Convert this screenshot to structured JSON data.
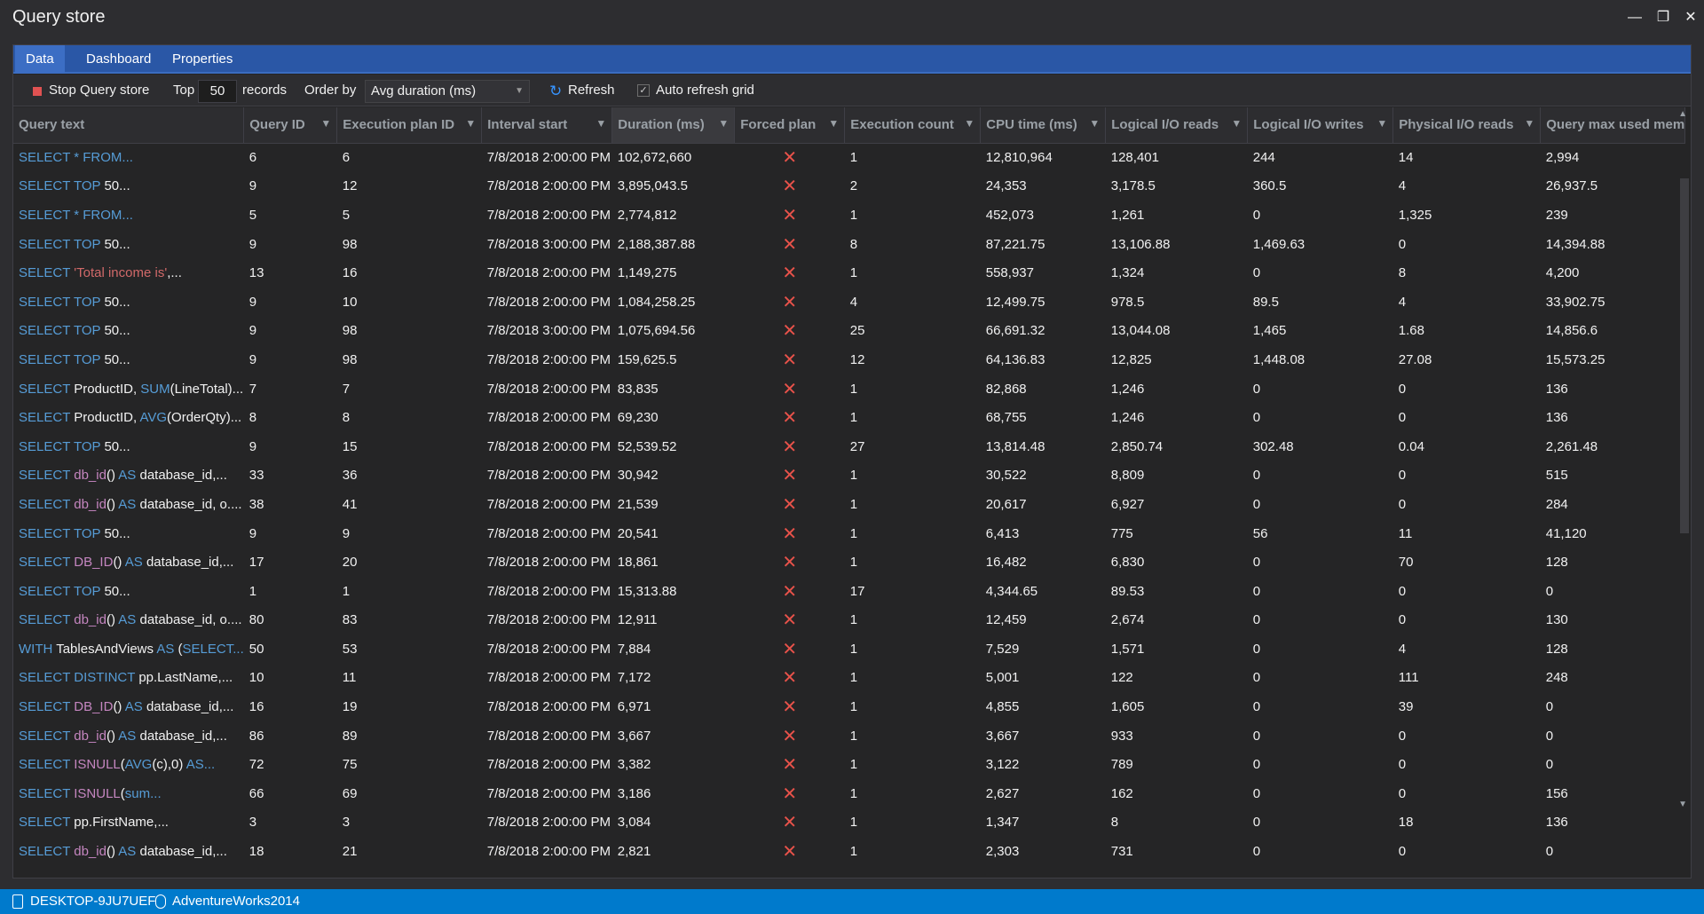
{
  "window": {
    "title": "Query store"
  },
  "tabs": [
    "Data",
    "Dashboard",
    "Properties"
  ],
  "toolbar": {
    "stop_label": "Stop Query store",
    "top_label": "Top",
    "top_value": "50",
    "records_label": "records",
    "order_label": "Order by",
    "order_value": "Avg duration (ms)",
    "refresh_label": "Refresh",
    "auto_refresh_label": "Auto refresh grid",
    "auto_refresh_checked": true
  },
  "columns": [
    "Query text",
    "Query ID",
    "Execution plan ID",
    "Interval start",
    "Duration (ms)",
    "Forced plan",
    "Execution count",
    "CPU time (ms)",
    "Logical I/O reads",
    "Logical I/O writes",
    "Physical I/O reads",
    "Query max used mem"
  ],
  "sorted_column": "Duration (ms)",
  "rows": [
    {
      "qt": [
        [
          "kw",
          "SELECT * FROM..."
        ]
      ],
      "id": "6",
      "plan": "6",
      "start": "7/8/2018 2:00:00 PM",
      "dur": "102,672,660",
      "cnt": "1",
      "cpu": "12,810,964",
      "lr": "128,401",
      "lw": "244",
      "pr": "14",
      "mem": "2,994"
    },
    {
      "qt": [
        [
          "kw",
          "SELECT TOP "
        ],
        [
          "t",
          "50..."
        ]
      ],
      "id": "9",
      "plan": "12",
      "start": "7/8/2018 2:00:00 PM",
      "dur": "3,895,043.5",
      "cnt": "2",
      "cpu": "24,353",
      "lr": "3,178.5",
      "lw": "360.5",
      "pr": "4",
      "mem": "26,937.5"
    },
    {
      "qt": [
        [
          "kw",
          "SELECT * FROM..."
        ]
      ],
      "id": "5",
      "plan": "5",
      "start": "7/8/2018 2:00:00 PM",
      "dur": "2,774,812",
      "cnt": "1",
      "cpu": "452,073",
      "lr": "1,261",
      "lw": "0",
      "pr": "1,325",
      "mem": "239"
    },
    {
      "qt": [
        [
          "kw",
          "SELECT TOP "
        ],
        [
          "t",
          "50..."
        ]
      ],
      "id": "9",
      "plan": "98",
      "start": "7/8/2018 3:00:00 PM",
      "dur": "2,188,387.88",
      "cnt": "8",
      "cpu": "87,221.75",
      "lr": "13,106.88",
      "lw": "1,469.63",
      "pr": "0",
      "mem": "14,394.88"
    },
    {
      "qt": [
        [
          "kw",
          "SELECT "
        ],
        [
          "str",
          "'Total income is'"
        ],
        [
          "t",
          ",..."
        ]
      ],
      "id": "13",
      "plan": "16",
      "start": "7/8/2018 2:00:00 PM",
      "dur": "1,149,275",
      "cnt": "1",
      "cpu": "558,937",
      "lr": "1,324",
      "lw": "0",
      "pr": "8",
      "mem": "4,200"
    },
    {
      "qt": [
        [
          "kw",
          "SELECT TOP "
        ],
        [
          "t",
          "50..."
        ]
      ],
      "id": "9",
      "plan": "10",
      "start": "7/8/2018 2:00:00 PM",
      "dur": "1,084,258.25",
      "cnt": "4",
      "cpu": "12,499.75",
      "lr": "978.5",
      "lw": "89.5",
      "pr": "4",
      "mem": "33,902.75"
    },
    {
      "qt": [
        [
          "kw",
          "SELECT TOP "
        ],
        [
          "t",
          "50..."
        ]
      ],
      "id": "9",
      "plan": "98",
      "start": "7/8/2018 3:00:00 PM",
      "dur": "1,075,694.56",
      "cnt": "25",
      "cpu": "66,691.32",
      "lr": "13,044.08",
      "lw": "1,465",
      "pr": "1.68",
      "mem": "14,856.6"
    },
    {
      "qt": [
        [
          "kw",
          "SELECT TOP "
        ],
        [
          "t",
          "50..."
        ]
      ],
      "id": "9",
      "plan": "98",
      "start": "7/8/2018 2:00:00 PM",
      "dur": "159,625.5",
      "cnt": "12",
      "cpu": "64,136.83",
      "lr": "12,825",
      "lw": "1,448.08",
      "pr": "27.08",
      "mem": "15,573.25"
    },
    {
      "qt": [
        [
          "kw",
          "SELECT "
        ],
        [
          "t",
          "ProductID, "
        ],
        [
          "kw",
          "SUM"
        ],
        [
          "t",
          "(LineTotal)..."
        ]
      ],
      "id": "7",
      "plan": "7",
      "start": "7/8/2018 2:00:00 PM",
      "dur": "83,835",
      "cnt": "1",
      "cpu": "82,868",
      "lr": "1,246",
      "lw": "0",
      "pr": "0",
      "mem": "136"
    },
    {
      "qt": [
        [
          "kw",
          "SELECT "
        ],
        [
          "t",
          "ProductID, "
        ],
        [
          "kw",
          "AVG"
        ],
        [
          "t",
          "(OrderQty)..."
        ]
      ],
      "id": "8",
      "plan": "8",
      "start": "7/8/2018 2:00:00 PM",
      "dur": "69,230",
      "cnt": "1",
      "cpu": "68,755",
      "lr": "1,246",
      "lw": "0",
      "pr": "0",
      "mem": "136"
    },
    {
      "qt": [
        [
          "kw",
          "SELECT TOP "
        ],
        [
          "t",
          "50..."
        ]
      ],
      "id": "9",
      "plan": "15",
      "start": "7/8/2018 2:00:00 PM",
      "dur": "52,539.52",
      "cnt": "27",
      "cpu": "13,814.48",
      "lr": "2,850.74",
      "lw": "302.48",
      "pr": "0.04",
      "mem": "2,261.48"
    },
    {
      "qt": [
        [
          "kw",
          "SELECT "
        ],
        [
          "fn",
          "db_id"
        ],
        [
          "t",
          "() "
        ],
        [
          "kw",
          "AS "
        ],
        [
          "t",
          "database_id,..."
        ]
      ],
      "id": "33",
      "plan": "36",
      "start": "7/8/2018 2:00:00 PM",
      "dur": "30,942",
      "cnt": "1",
      "cpu": "30,522",
      "lr": "8,809",
      "lw": "0",
      "pr": "0",
      "mem": "515"
    },
    {
      "qt": [
        [
          "kw",
          "SELECT "
        ],
        [
          "fn",
          "db_id"
        ],
        [
          "t",
          "() "
        ],
        [
          "kw",
          "AS "
        ],
        [
          "t",
          "database_id, o...."
        ]
      ],
      "id": "38",
      "plan": "41",
      "start": "7/8/2018 2:00:00 PM",
      "dur": "21,539",
      "cnt": "1",
      "cpu": "20,617",
      "lr": "6,927",
      "lw": "0",
      "pr": "0",
      "mem": "284"
    },
    {
      "qt": [
        [
          "kw",
          "SELECT TOP "
        ],
        [
          "t",
          "50..."
        ]
      ],
      "id": "9",
      "plan": "9",
      "start": "7/8/2018 2:00:00 PM",
      "dur": "20,541",
      "cnt": "1",
      "cpu": "6,413",
      "lr": "775",
      "lw": "56",
      "pr": "11",
      "mem": "41,120"
    },
    {
      "qt": [
        [
          "kw",
          "SELECT "
        ],
        [
          "fn",
          "DB_ID"
        ],
        [
          "t",
          "() "
        ],
        [
          "kw",
          "AS "
        ],
        [
          "t",
          "database_id,..."
        ]
      ],
      "id": "17",
      "plan": "20",
      "start": "7/8/2018 2:00:00 PM",
      "dur": "18,861",
      "cnt": "1",
      "cpu": "16,482",
      "lr": "6,830",
      "lw": "0",
      "pr": "70",
      "mem": "128"
    },
    {
      "qt": [
        [
          "kw",
          "SELECT TOP "
        ],
        [
          "t",
          "50..."
        ]
      ],
      "id": "1",
      "plan": "1",
      "start": "7/8/2018 2:00:00 PM",
      "dur": "15,313.88",
      "cnt": "17",
      "cpu": "4,344.65",
      "lr": "89.53",
      "lw": "0",
      "pr": "0",
      "mem": "0"
    },
    {
      "qt": [
        [
          "kw",
          "SELECT "
        ],
        [
          "fn",
          "db_id"
        ],
        [
          "t",
          "() "
        ],
        [
          "kw",
          "AS "
        ],
        [
          "t",
          "database_id, o...."
        ]
      ],
      "id": "80",
      "plan": "83",
      "start": "7/8/2018 2:00:00 PM",
      "dur": "12,911",
      "cnt": "1",
      "cpu": "12,459",
      "lr": "2,674",
      "lw": "0",
      "pr": "0",
      "mem": "130"
    },
    {
      "qt": [
        [
          "kw",
          "WITH "
        ],
        [
          "t",
          "TablesAndViews "
        ],
        [
          "kw",
          "AS "
        ],
        [
          "t",
          "("
        ],
        [
          "kw",
          "SELECT..."
        ]
      ],
      "id": "50",
      "plan": "53",
      "start": "7/8/2018 2:00:00 PM",
      "dur": "7,884",
      "cnt": "1",
      "cpu": "7,529",
      "lr": "1,571",
      "lw": "0",
      "pr": "4",
      "mem": "128"
    },
    {
      "qt": [
        [
          "kw",
          "SELECT DISTINCT "
        ],
        [
          "t",
          "pp.LastName,..."
        ]
      ],
      "id": "10",
      "plan": "11",
      "start": "7/8/2018 2:00:00 PM",
      "dur": "7,172",
      "cnt": "1",
      "cpu": "5,001",
      "lr": "122",
      "lw": "0",
      "pr": "111",
      "mem": "248"
    },
    {
      "qt": [
        [
          "kw",
          "SELECT "
        ],
        [
          "fn",
          "DB_ID"
        ],
        [
          "t",
          "() "
        ],
        [
          "kw",
          "AS "
        ],
        [
          "t",
          "database_id,..."
        ]
      ],
      "id": "16",
      "plan": "19",
      "start": "7/8/2018 2:00:00 PM",
      "dur": "6,971",
      "cnt": "1",
      "cpu": "4,855",
      "lr": "1,605",
      "lw": "0",
      "pr": "39",
      "mem": "0"
    },
    {
      "qt": [
        [
          "kw",
          "SELECT "
        ],
        [
          "fn",
          "db_id"
        ],
        [
          "t",
          "() "
        ],
        [
          "kw",
          "AS "
        ],
        [
          "t",
          "database_id,..."
        ]
      ],
      "id": "86",
      "plan": "89",
      "start": "7/8/2018 2:00:00 PM",
      "dur": "3,667",
      "cnt": "1",
      "cpu": "3,667",
      "lr": "933",
      "lw": "0",
      "pr": "0",
      "mem": "0"
    },
    {
      "qt": [
        [
          "kw",
          "SELECT "
        ],
        [
          "fn",
          "ISNULL"
        ],
        [
          "t",
          "("
        ],
        [
          "kw",
          "AVG"
        ],
        [
          "t",
          "(c),0) "
        ],
        [
          "kw",
          "AS..."
        ]
      ],
      "id": "72",
      "plan": "75",
      "start": "7/8/2018 2:00:00 PM",
      "dur": "3,382",
      "cnt": "1",
      "cpu": "3,122",
      "lr": "789",
      "lw": "0",
      "pr": "0",
      "mem": "0"
    },
    {
      "qt": [
        [
          "kw",
          "SELECT "
        ],
        [
          "fn",
          "ISNULL"
        ],
        [
          "t",
          "("
        ],
        [
          "kw",
          "sum..."
        ]
      ],
      "id": "66",
      "plan": "69",
      "start": "7/8/2018 2:00:00 PM",
      "dur": "3,186",
      "cnt": "1",
      "cpu": "2,627",
      "lr": "162",
      "lw": "0",
      "pr": "0",
      "mem": "156"
    },
    {
      "qt": [
        [
          "kw",
          "SELECT "
        ],
        [
          "t",
          "pp.FirstName,..."
        ]
      ],
      "id": "3",
      "plan": "3",
      "start": "7/8/2018 2:00:00 PM",
      "dur": "3,084",
      "cnt": "1",
      "cpu": "1,347",
      "lr": "8",
      "lw": "0",
      "pr": "18",
      "mem": "136"
    },
    {
      "qt": [
        [
          "kw",
          "SELECT "
        ],
        [
          "fn",
          "db_id"
        ],
        [
          "t",
          "() "
        ],
        [
          "kw",
          "AS "
        ],
        [
          "t",
          "database_id,..."
        ]
      ],
      "id": "18",
      "plan": "21",
      "start": "7/8/2018 2:00:00 PM",
      "dur": "2,821",
      "cnt": "1",
      "cpu": "2,303",
      "lr": "731",
      "lw": "0",
      "pr": "0",
      "mem": "0"
    }
  ],
  "forced_plan_icon": "red-x-icon",
  "status": {
    "server": "DESKTOP-9JU7UEF",
    "database": "AdventureWorks2014"
  },
  "colors": {
    "accent": "#2a57a6",
    "status_bar": "#007acc",
    "keyword": "#569cd6",
    "function": "#c586c0",
    "string": "#d16969",
    "forced_x": "#e8524a"
  }
}
